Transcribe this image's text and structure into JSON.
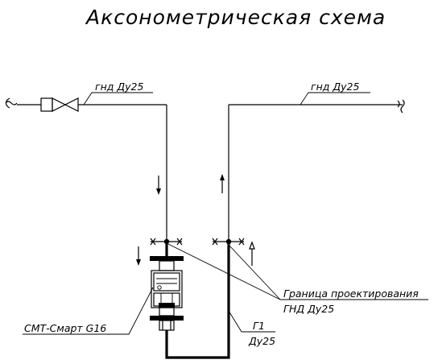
{
  "title": "Аксонометрическая схема",
  "labels": {
    "left_pipe": "гнд Ду25",
    "right_pipe": "гнд Ду25",
    "meter": "СМТ-Смарт G16",
    "boundary_line1": "Граница проектирования",
    "boundary_line2": "ГНД Ду25",
    "g1_line1": "Г1",
    "g1_line2": "Ду25"
  },
  "colors": {
    "line": "#000000",
    "background": "#ffffff"
  },
  "icons": {
    "valve": "gate-valve-icon",
    "meter": "gas-meter-icon",
    "break": "pipe-break-icon",
    "arrow": "flow-arrow-icon"
  }
}
